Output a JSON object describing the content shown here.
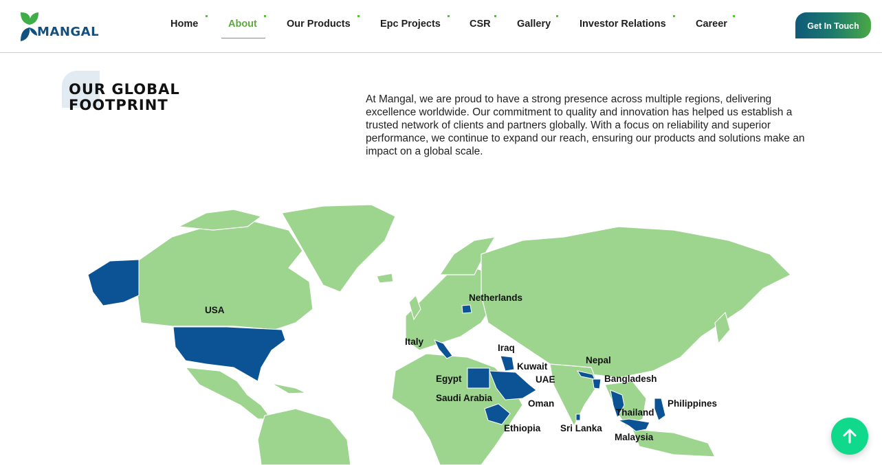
{
  "brand": {
    "name": "MANGAL",
    "leaf_colors": [
      "#12507f",
      "#3fae49"
    ]
  },
  "nav": {
    "items": [
      {
        "label": "Home",
        "active": false
      },
      {
        "label": "About",
        "active": true
      },
      {
        "label": "Our Products",
        "active": false
      },
      {
        "label": "Epc Projects",
        "active": false
      },
      {
        "label": "CSR",
        "active": false
      },
      {
        "label": "Gallery",
        "active": false
      },
      {
        "label": "Investor Relations",
        "active": false
      },
      {
        "label": "Career",
        "active": false
      }
    ],
    "cta_label": "Get In Touch"
  },
  "section": {
    "title_line1": "OUR GLOBAL",
    "title_line2": "FOOTPRINT",
    "intro": "At Mangal, we are proud to have a strong presence across multiple regions, delivering excellence worldwide. Our commitment to quality and innovation has helped us establish a trusted network of clients and partners globally. With a focus on reliability and superior performance, we continue to expand our reach, ensuring our products and solutions make an impact on a global scale."
  },
  "map": {
    "land_color": "#9dd58f",
    "highlight_color": "#0b5394",
    "countries": [
      "USA",
      "Netherlands",
      "Italy",
      "Iraq",
      "Kuwait",
      "UAE",
      "Egypt",
      "Saudi Arabia",
      "Oman",
      "Ethiopia",
      "Nepal",
      "Bangladesh",
      "Sri Lanka",
      "Thailand",
      "Malaysia",
      "Philippines"
    ]
  },
  "scroll_top_icon": "arrow-up-icon"
}
